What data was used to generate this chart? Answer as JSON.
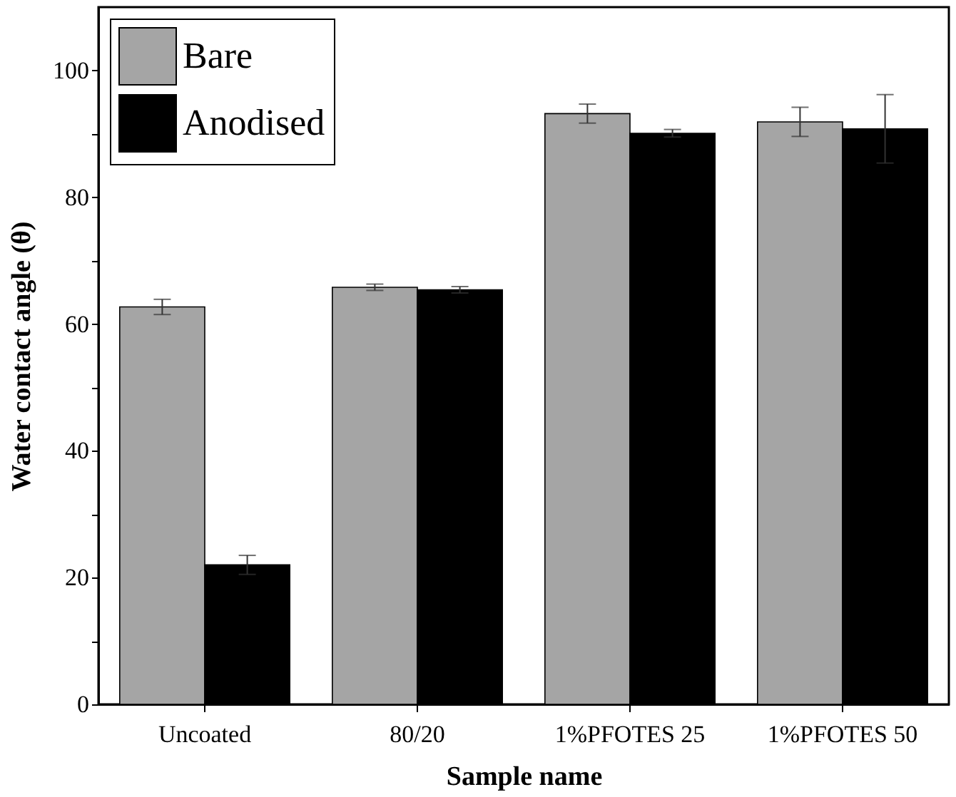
{
  "chart_data": {
    "type": "bar",
    "xlabel": "Sample name",
    "ylabel": "Water contact angle (θ)",
    "categories": [
      "Uncoated",
      "80/20",
      "1%PFOTES 25",
      "1%PFOTES 50"
    ],
    "series": [
      {
        "name": "Bare",
        "color": "#a5a5a5",
        "values": [
          62.7,
          65.8,
          93.2,
          91.9
        ],
        "errors": [
          1.2,
          0.5,
          1.5,
          2.3
        ]
      },
      {
        "name": "Anodised",
        "color": "#000000",
        "values": [
          22.0,
          65.4,
          90.1,
          90.8
        ],
        "errors": [
          1.5,
          0.5,
          0.6,
          5.4
        ]
      }
    ],
    "ylim": [
      0,
      110
    ],
    "yticks": [
      0,
      {
        "value": 10,
        "label": null
      },
      20,
      {
        "value": 30,
        "label": null
      },
      40,
      {
        "value": 50,
        "label": null
      },
      60,
      {
        "value": 70,
        "label": null
      },
      80,
      {
        "value": 90,
        "label": null
      },
      100
    ],
    "grid": false,
    "legend": "top left"
  }
}
